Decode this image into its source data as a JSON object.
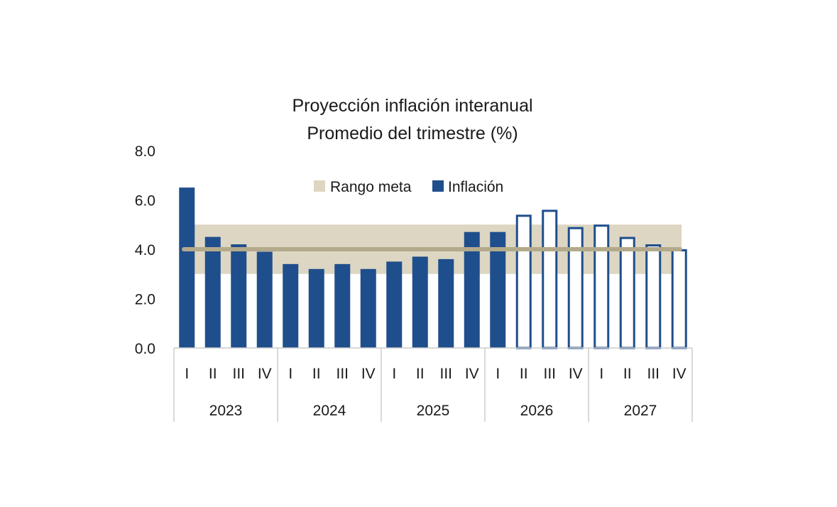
{
  "chart_data": {
    "type": "bar",
    "title": "Proyección inflación interanual",
    "subtitle": "Promedio del trimestre (%)",
    "ylim": [
      0,
      8
    ],
    "yticks": [
      "0.0",
      "2.0",
      "4.0",
      "6.0",
      "8.0"
    ],
    "target_range": {
      "name": "Rango meta",
      "low": 3.0,
      "high": 5.0,
      "center": 4.0
    },
    "legend": [
      {
        "name": "Rango meta",
        "color": "#dcd6c2"
      },
      {
        "name": "Inflación",
        "color": "#1f4e8c"
      }
    ],
    "legend_position": "top-center",
    "years": [
      {
        "label": "2023",
        "quarters": [
          "I",
          "II",
          "III",
          "IV"
        ]
      },
      {
        "label": "2024",
        "quarters": [
          "I",
          "II",
          "III",
          "IV"
        ]
      },
      {
        "label": "2025",
        "quarters": [
          "I",
          "II",
          "III",
          "IV"
        ]
      },
      {
        "label": "2026",
        "quarters": [
          "I",
          "II",
          "III",
          "IV"
        ]
      },
      {
        "label": "2027",
        "quarters": [
          "I",
          "II",
          "III",
          "IV"
        ]
      }
    ],
    "series": [
      {
        "name": "Inflación",
        "values": [
          6.5,
          4.5,
          4.2,
          3.9,
          3.4,
          3.2,
          3.4,
          3.2,
          3.5,
          3.7,
          3.6,
          4.7,
          4.7,
          5.4,
          5.6,
          4.9,
          5.0,
          4.5,
          4.2,
          4.0
        ],
        "projected": [
          false,
          false,
          false,
          false,
          false,
          false,
          false,
          false,
          false,
          false,
          false,
          false,
          false,
          true,
          true,
          true,
          true,
          true,
          true,
          true
        ]
      }
    ],
    "colors": {
      "bar": "#1f4e8c",
      "band": "#dcd6c2",
      "line": "#b3a98b",
      "axis": "#cccccc"
    }
  }
}
